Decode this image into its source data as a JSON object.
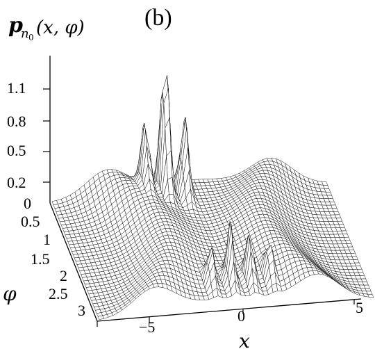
{
  "panel_label": "(b)",
  "chart_data": {
    "type": "surface-3d",
    "title": "",
    "zlabel": {
      "main": "p",
      "sub": "n",
      "subsub": "0",
      "args": "(x, φ)"
    },
    "xlabel": "x",
    "ylabel": "φ",
    "x_ticks": [
      "−5",
      "0",
      "5"
    ],
    "phi_ticks": [
      "0",
      "0.5",
      "1",
      "1.5",
      "2",
      "2.5",
      "3"
    ],
    "z_ticks": [
      "0.2",
      "0.5",
      "0.8",
      "1.1"
    ],
    "xlim": [
      -7,
      7
    ],
    "philim": [
      0,
      3.14
    ],
    "zlim": [
      0,
      1.3
    ],
    "features": {
      "back_peaks_x": [
        -2.5,
        -1.5,
        -0.5
      ],
      "front_peaks_x": [
        -1,
        0,
        1,
        2
      ],
      "peak_max": 1.3
    },
    "grid": "wireframe mesh",
    "colors": {
      "mesh": "#000000",
      "surface": "#ffffff"
    }
  }
}
